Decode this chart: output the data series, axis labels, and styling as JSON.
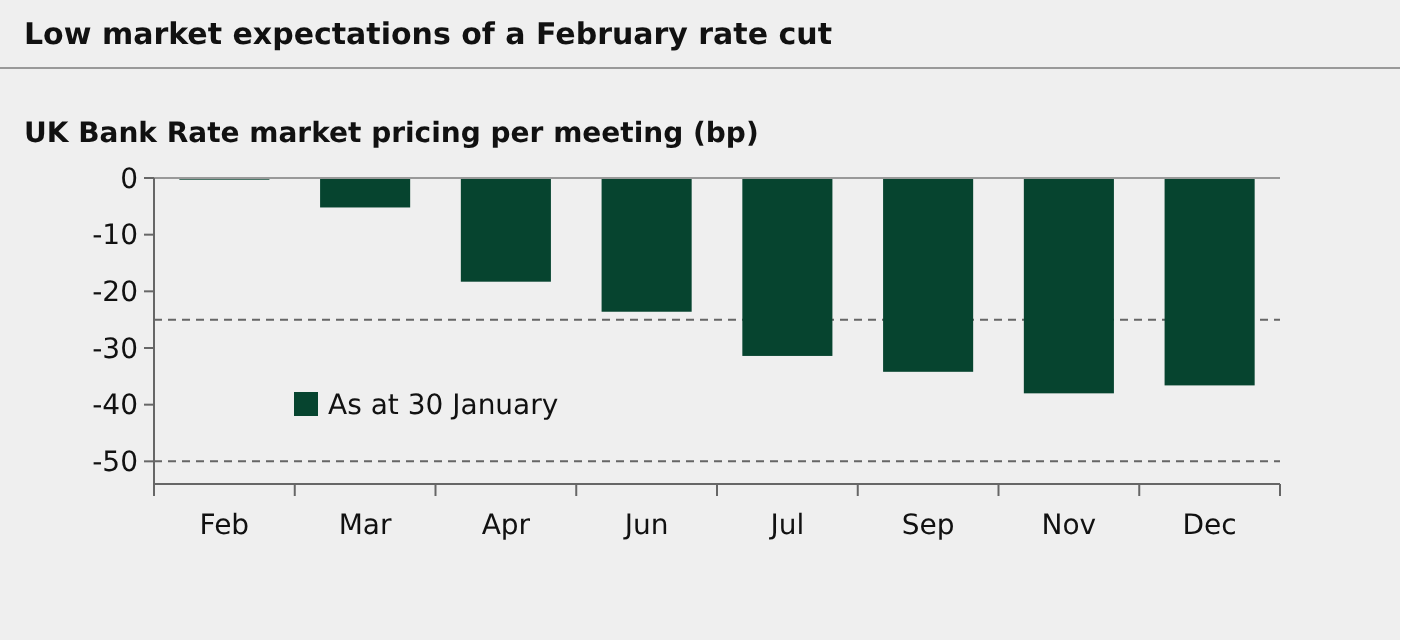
{
  "chart_data": {
    "type": "bar",
    "title": "Low market expectations of a February rate cut",
    "subtitle": "UK Bank Rate market pricing per meeting (bp)",
    "categories": [
      "Feb",
      "Mar",
      "Apr",
      "Jun",
      "Jul",
      "Sep",
      "Nov",
      "Dec"
    ],
    "series": [
      {
        "name": "As at 30 January",
        "color": "#06442f",
        "values": [
          -0.3,
          -5.2,
          -18.3,
          -23.6,
          -31.4,
          -34.2,
          -38,
          -36.6
        ]
      }
    ],
    "ylim": [
      -54,
      0
    ],
    "yticks": [
      0,
      -10,
      -20,
      -30,
      -40,
      -50
    ],
    "ref_lines": [
      {
        "axis": "y",
        "value": -25,
        "color": "#666666",
        "line_style": "dashed"
      },
      {
        "axis": "y",
        "value": -50,
        "color": "#666666",
        "line_style": "dashed"
      }
    ],
    "legend": "bottom left",
    "grid": false
  }
}
